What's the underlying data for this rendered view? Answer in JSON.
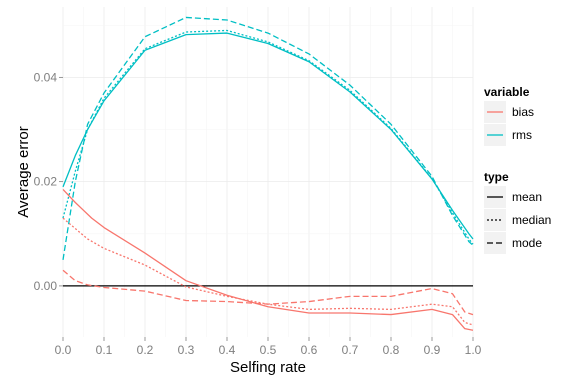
{
  "chart_data": {
    "type": "line",
    "xlabel": "Selfing rate",
    "ylabel": "Average error",
    "xlim": [
      0,
      1
    ],
    "ylim": [
      -0.0098,
      0.0535
    ],
    "x_ticks": [
      0.0,
      0.1,
      0.2,
      0.3,
      0.4,
      0.5,
      0.6,
      0.7,
      0.8,
      0.9,
      1.0
    ],
    "x_tick_labels": [
      "0.0",
      "0.1",
      "0.2",
      "0.3",
      "0.4",
      "0.5",
      "0.6",
      "0.7",
      "0.8",
      "0.9",
      "1.0"
    ],
    "y_ticks": [
      0.0,
      0.02,
      0.04
    ],
    "y_tick_labels": [
      "0.00",
      "0.02",
      "0.04"
    ],
    "grid": true,
    "reference_line_y": 0,
    "colors": {
      "bias": "#F8766D",
      "rms": "#00BFC4",
      "panel": "#ffffff",
      "grid": "#ebebeb",
      "legend_key": "#f2f2f2"
    },
    "legend": {
      "position": "right",
      "variable": {
        "title": "variable",
        "entries": [
          "bias",
          "rms"
        ]
      },
      "type": {
        "title": "type",
        "entries": [
          "mean",
          "median",
          "mode"
        ]
      }
    },
    "series": [
      {
        "variable": "rms",
        "type": "mean",
        "x": [
          0.0,
          0.03,
          0.06,
          0.1,
          0.2,
          0.3,
          0.4,
          0.5,
          0.6,
          0.7,
          0.8,
          0.9,
          0.95,
          0.99,
          1.0
        ],
        "y": [
          0.019,
          0.025,
          0.03,
          0.0355,
          0.0452,
          0.0482,
          0.0485,
          0.0465,
          0.043,
          0.0372,
          0.03,
          0.0205,
          0.0145,
          0.01,
          0.009
        ]
      },
      {
        "variable": "rms",
        "type": "median",
        "x": [
          0.0,
          0.03,
          0.06,
          0.1,
          0.2,
          0.3,
          0.4,
          0.5,
          0.6,
          0.7,
          0.8,
          0.9,
          0.95,
          0.99,
          1.0
        ],
        "y": [
          0.013,
          0.022,
          0.03,
          0.036,
          0.0455,
          0.0487,
          0.049,
          0.0468,
          0.0432,
          0.0375,
          0.0302,
          0.0206,
          0.014,
          0.009,
          0.008
        ]
      },
      {
        "variable": "rms",
        "type": "mode",
        "x": [
          0.0,
          0.03,
          0.06,
          0.1,
          0.2,
          0.3,
          0.4,
          0.5,
          0.6,
          0.7,
          0.8,
          0.9,
          0.95,
          0.99,
          1.0
        ],
        "y": [
          0.005,
          0.02,
          0.031,
          0.037,
          0.0478,
          0.0515,
          0.051,
          0.0485,
          0.0445,
          0.0385,
          0.031,
          0.021,
          0.0135,
          0.0085,
          0.0078
        ]
      },
      {
        "variable": "bias",
        "type": "mean",
        "x": [
          0.0,
          0.03,
          0.05,
          0.07,
          0.1,
          0.2,
          0.3,
          0.4,
          0.5,
          0.6,
          0.7,
          0.8,
          0.9,
          0.95,
          0.98,
          1.0
        ],
        "y": [
          0.0185,
          0.016,
          0.0145,
          0.013,
          0.0112,
          0.0063,
          0.001,
          -0.0018,
          -0.004,
          -0.0052,
          -0.0052,
          -0.0055,
          -0.0045,
          -0.0055,
          -0.0082,
          -0.0085
        ]
      },
      {
        "variable": "bias",
        "type": "median",
        "x": [
          0.0,
          0.03,
          0.06,
          0.1,
          0.2,
          0.3,
          0.4,
          0.5,
          0.6,
          0.7,
          0.8,
          0.9,
          0.95,
          0.98,
          1.0
        ],
        "y": [
          0.013,
          0.011,
          0.009,
          0.0072,
          0.004,
          -0.0002,
          -0.002,
          -0.0035,
          -0.0045,
          -0.0043,
          -0.0045,
          -0.0035,
          -0.004,
          -0.007,
          -0.0075
        ]
      },
      {
        "variable": "bias",
        "type": "mode",
        "x": [
          0.0,
          0.03,
          0.06,
          0.1,
          0.2,
          0.3,
          0.4,
          0.5,
          0.6,
          0.7,
          0.8,
          0.9,
          0.95,
          0.98,
          1.0
        ],
        "y": [
          0.003,
          0.001,
          0.0002,
          -0.0003,
          -0.001,
          -0.0028,
          -0.003,
          -0.0035,
          -0.003,
          -0.002,
          -0.002,
          -0.0005,
          -0.0015,
          -0.005,
          -0.0055
        ]
      }
    ]
  }
}
